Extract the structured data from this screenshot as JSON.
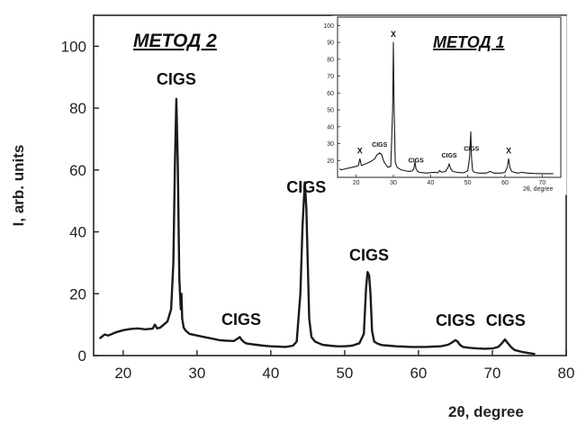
{
  "chart_data": [
    {
      "type": "line",
      "title": "МЕТОД 2",
      "xlabel": "2θ, degree",
      "ylabel": "I, arb. units",
      "xlim": [
        16,
        80
      ],
      "ylim": [
        0,
        110
      ],
      "xticks": [
        20,
        30,
        40,
        50,
        60,
        70,
        80
      ],
      "yticks": [
        0,
        20,
        40,
        60,
        80,
        100
      ],
      "grid": false,
      "series": [
        {
          "x": [
            16.8,
            17.5,
            18,
            19,
            20,
            21,
            22,
            23,
            24,
            24.3,
            24.6,
            25,
            26,
            26.5,
            26.8,
            27.0,
            27.2,
            27.4,
            27.6,
            27.8,
            27.9,
            28.0,
            28.2,
            28.5,
            29,
            30,
            31,
            32,
            33,
            34,
            35,
            35.5,
            35.8,
            36.0,
            36.3,
            36.6,
            37,
            38,
            39,
            40,
            41,
            42,
            43,
            43.5,
            44.0,
            44.3,
            44.6,
            44.8,
            45.0,
            45.2,
            45.5,
            46,
            46.5,
            47,
            48,
            49,
            50,
            51,
            52,
            52.6,
            52.9,
            53.1,
            53.3,
            53.5,
            53.7,
            54.0,
            54.5,
            55,
            56,
            57,
            58,
            59,
            60,
            61,
            62,
            63,
            64,
            64.5,
            65.0,
            65.3,
            65.6,
            66,
            67,
            68,
            69,
            70,
            70.8,
            71.3,
            71.7,
            72.1,
            72.6,
            73,
            74,
            75,
            75.8
          ],
          "y": [
            5.5,
            6.8,
            6.5,
            7.5,
            8.2,
            8.6,
            8.8,
            8.5,
            8.7,
            10.0,
            8.8,
            9.0,
            11.0,
            15.0,
            30.0,
            60.0,
            83.0,
            62.0,
            25.0,
            15.0,
            20.0,
            12.0,
            9.0,
            8.0,
            7.0,
            6.5,
            6.0,
            5.5,
            5.0,
            4.8,
            4.7,
            5.5,
            6.0,
            5.2,
            4.5,
            4.0,
            3.8,
            3.5,
            3.2,
            3.0,
            2.9,
            2.8,
            3.2,
            4.5,
            20.0,
            42.0,
            56.0,
            48.0,
            30.0,
            12.0,
            6.0,
            4.5,
            4.0,
            3.5,
            3.2,
            3.0,
            3.0,
            3.2,
            4.0,
            7.0,
            22.0,
            27.0,
            26.0,
            20.0,
            8.0,
            4.5,
            3.8,
            3.4,
            3.2,
            3.0,
            2.9,
            2.8,
            2.8,
            2.8,
            2.9,
            3.0,
            3.5,
            4.2,
            5.0,
            4.5,
            3.5,
            2.8,
            2.5,
            2.3,
            2.2,
            2.3,
            2.8,
            4.0,
            5.2,
            4.0,
            2.6,
            1.8,
            1.2,
            0.8,
            0.5
          ]
        }
      ],
      "annotations": [
        {
          "text": "CIGS",
          "x": 27.2
        },
        {
          "text": "CIGS",
          "x": 36.0
        },
        {
          "text": "CIGS",
          "x": 44.8
        },
        {
          "text": "CIGS",
          "x": 53.3
        },
        {
          "text": "CIGS",
          "x": 65.0
        },
        {
          "text": "CIGS",
          "x": 71.8
        }
      ]
    },
    {
      "type": "line",
      "title": "МЕТОД 1",
      "xlabel": "2θ, degree",
      "ylabel": "",
      "xlim": [
        15,
        75
      ],
      "ylim": [
        10,
        105
      ],
      "xticks": [
        20,
        30,
        40,
        50,
        60,
        70
      ],
      "yticks": [
        20,
        30,
        40,
        50,
        60,
        70,
        80,
        90,
        100
      ],
      "grid": false,
      "series": [
        {
          "x": [
            15.5,
            16,
            17,
            18,
            19,
            20,
            20.6,
            21.0,
            21.4,
            22,
            23,
            24,
            25,
            25.5,
            26,
            26.3,
            26.8,
            27.5,
            28.5,
            29.3,
            29.8,
            30.0,
            30.2,
            30.5,
            31,
            32,
            33,
            34,
            35,
            35.5,
            35.8,
            36.1,
            36.5,
            37,
            38,
            39,
            40,
            41,
            42,
            42.4,
            43,
            44,
            44.7,
            45.0,
            45.4,
            46,
            47,
            48,
            49,
            50,
            50.5,
            50.8,
            51.0,
            51.3,
            51.8,
            52.5,
            53.5,
            55,
            56,
            57,
            58,
            59,
            60,
            60.6,
            61.0,
            61.3,
            61.8,
            62.5,
            63.5,
            64.5,
            66,
            68,
            70,
            72,
            73
          ],
          "y": [
            15.0,
            14.5,
            15.0,
            15.5,
            16.0,
            16.5,
            17.0,
            21.0,
            17.0,
            17.5,
            18.5,
            19.5,
            21.0,
            23.0,
            24.0,
            24.5,
            23.5,
            19.0,
            16.0,
            16.5,
            50.0,
            90.0,
            52.0,
            19.0,
            16.0,
            14.5,
            14.0,
            13.5,
            13.8,
            15.0,
            19.0,
            15.0,
            13.5,
            13.0,
            12.8,
            12.5,
            12.8,
            13.0,
            12.8,
            14.0,
            13.0,
            13.5,
            16.0,
            18.0,
            15.0,
            13.5,
            13.0,
            12.8,
            12.8,
            14.0,
            22.0,
            37.0,
            22.0,
            14.0,
            13.0,
            12.6,
            12.5,
            12.5,
            13.5,
            12.5,
            12.5,
            12.5,
            13.0,
            16.0,
            21.0,
            16.0,
            13.5,
            13.0,
            12.5,
            13.0,
            12.5,
            12.3,
            12.2,
            12.2,
            12.2
          ]
        }
      ],
      "annotations": [
        {
          "text": "X",
          "x": 21.0
        },
        {
          "text": "CIGS",
          "x": 26.3
        },
        {
          "text": "X",
          "x": 30.0
        },
        {
          "text": "CIGS",
          "x": 36.1
        },
        {
          "text": "CIGS",
          "x": 45.0
        },
        {
          "text": "CIGS",
          "x": 51.0
        },
        {
          "text": "X",
          "x": 61.0
        }
      ]
    }
  ]
}
